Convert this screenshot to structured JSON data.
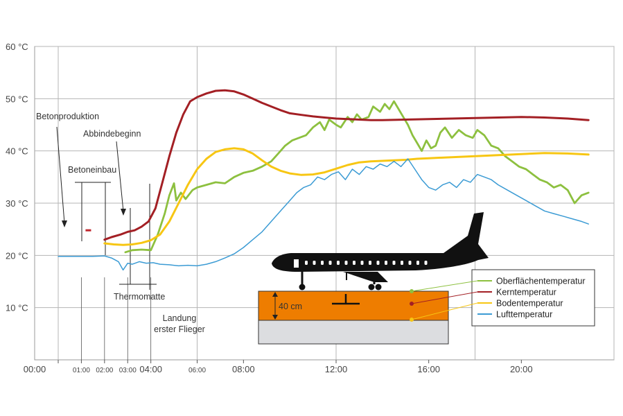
{
  "chart_data": {
    "type": "line",
    "ylim": [
      0,
      60
    ],
    "xlim": [
      0,
      24
    ],
    "grid": true,
    "y_ticks": [
      {
        "v": 10,
        "label": "10 °C"
      },
      {
        "v": 20,
        "label": "20 °C"
      },
      {
        "v": 30,
        "label": "30 °C"
      },
      {
        "v": 40,
        "label": "40 °C"
      },
      {
        "v": 50,
        "label": "50 °C"
      },
      {
        "v": 60,
        "label": "60 °C"
      }
    ],
    "x_ticks": [
      {
        "v": 0,
        "label": "00:00",
        "size": "large"
      },
      {
        "v": 1,
        "label": "01:00",
        "size": "small"
      },
      {
        "v": 2,
        "label": "02:00",
        "size": "small"
      },
      {
        "v": 3,
        "label": "03:00",
        "size": "small"
      },
      {
        "v": 4,
        "label": "04:00",
        "size": "large"
      },
      {
        "v": 6,
        "label": "06:00",
        "size": "small"
      },
      {
        "v": 8,
        "label": "08:00",
        "size": "large"
      },
      {
        "v": 12,
        "label": "12:00",
        "size": "large"
      },
      {
        "v": 16,
        "label": "16:00",
        "size": "large"
      },
      {
        "v": 20,
        "label": "20:00",
        "size": "large"
      }
    ],
    "major_grid_x": [
      0,
      6,
      12,
      18,
      24
    ],
    "series": [
      {
        "name": "Oberflächentemperatur",
        "color": "#8dc03f",
        "x": [
          2.9,
          3.2,
          3.6,
          4.0,
          4.3,
          4.6,
          4.8,
          5.0,
          5.1,
          5.3,
          5.5,
          5.8,
          6.0,
          6.4,
          6.8,
          7.2,
          7.6,
          8.0,
          8.4,
          8.8,
          9.2,
          9.5,
          9.8,
          10.1,
          10.4,
          10.7,
          11.0,
          11.3,
          11.5,
          11.7,
          12.0,
          12.2,
          12.5,
          12.7,
          12.9,
          13.1,
          13.4,
          13.6,
          13.9,
          14.1,
          14.3,
          14.5,
          14.7,
          14.9,
          15.1,
          15.3,
          15.5,
          15.7,
          15.9,
          16.1,
          16.3,
          16.5,
          16.7,
          17.0,
          17.3,
          17.6,
          17.9,
          18.1,
          18.4,
          18.7,
          19.0,
          19.3,
          19.6,
          19.9,
          20.2,
          20.5,
          20.8,
          21.1,
          21.4,
          21.7,
          22.0,
          22.3,
          22.6,
          22.9
        ],
        "y": [
          20.6,
          21.0,
          21.1,
          21.0,
          24.0,
          28.0,
          31.5,
          33.8,
          30.5,
          32.0,
          30.8,
          32.5,
          33.0,
          33.5,
          34.0,
          33.8,
          35.0,
          35.8,
          36.2,
          37.0,
          38.0,
          39.5,
          41.0,
          42.0,
          42.5,
          43.0,
          44.5,
          45.5,
          44.0,
          46.0,
          45.0,
          44.5,
          46.5,
          45.5,
          47.0,
          46.0,
          46.5,
          48.5,
          47.5,
          49.0,
          48.0,
          49.5,
          48.0,
          46.5,
          45.0,
          43.0,
          41.5,
          40.0,
          42.0,
          40.5,
          41.0,
          43.5,
          44.5,
          42.5,
          44.0,
          43.0,
          42.5,
          44.0,
          43.0,
          41.0,
          40.5,
          39.0,
          38.0,
          37.0,
          36.5,
          35.5,
          34.5,
          34.0,
          33.0,
          33.5,
          32.5,
          30.0,
          31.5,
          32.0
        ]
      },
      {
        "name": "Kerntemperatur",
        "color": "#a31f24",
        "x": [
          2.0,
          2.3,
          2.7,
          3.0,
          3.3,
          3.6,
          3.9,
          4.2,
          4.5,
          4.8,
          5.1,
          5.4,
          5.7,
          6.0,
          6.4,
          6.8,
          7.2,
          7.6,
          8.0,
          8.4,
          8.8,
          9.2,
          9.6,
          10.0,
          10.5,
          11.0,
          11.5,
          12.0,
          12.5,
          13.0,
          13.5,
          14.0,
          15.0,
          16.0,
          17.0,
          18.0,
          19.0,
          20.0,
          21.0,
          22.0,
          22.9
        ],
        "y": [
          23.0,
          23.5,
          24.0,
          24.5,
          24.8,
          25.5,
          26.5,
          29.0,
          34.0,
          39.0,
          43.5,
          47.0,
          49.5,
          50.3,
          51.0,
          51.5,
          51.6,
          51.4,
          50.8,
          50.0,
          49.2,
          48.5,
          47.8,
          47.2,
          46.9,
          46.6,
          46.4,
          46.2,
          46.1,
          46.0,
          45.9,
          45.9,
          46.0,
          46.1,
          46.2,
          46.3,
          46.4,
          46.5,
          46.4,
          46.2,
          45.9
        ]
      },
      {
        "name": "Bodentemperatur",
        "color": "#f7c613",
        "x": [
          2.0,
          2.4,
          2.8,
          3.2,
          3.6,
          4.0,
          4.4,
          4.8,
          5.2,
          5.6,
          6.0,
          6.4,
          6.8,
          7.2,
          7.6,
          8.0,
          8.4,
          8.8,
          9.2,
          9.6,
          10.0,
          10.5,
          11.0,
          11.5,
          12.0,
          12.5,
          13.0,
          13.5,
          14.0,
          14.5,
          15.0,
          15.5,
          16.0,
          17.0,
          18.0,
          19.0,
          20.0,
          21.0,
          22.0,
          22.9
        ],
        "y": [
          22.3,
          22.1,
          22.0,
          22.1,
          22.4,
          22.9,
          24.0,
          26.5,
          30.0,
          33.5,
          36.5,
          38.5,
          39.8,
          40.3,
          40.5,
          40.3,
          39.5,
          38.2,
          37.0,
          36.2,
          35.7,
          35.4,
          35.5,
          35.9,
          36.6,
          37.3,
          37.8,
          38.0,
          38.1,
          38.2,
          38.3,
          38.5,
          38.6,
          38.8,
          39.0,
          39.2,
          39.4,
          39.6,
          39.5,
          39.3
        ]
      },
      {
        "name": "Lufttemperatur",
        "color": "#3b9bd4",
        "x": [
          0.0,
          0.5,
          1.0,
          1.5,
          2.0,
          2.3,
          2.6,
          2.8,
          3.0,
          3.2,
          3.5,
          3.8,
          4.1,
          4.4,
          4.8,
          5.2,
          5.6,
          6.0,
          6.4,
          6.8,
          7.2,
          7.6,
          8.0,
          8.4,
          8.8,
          9.2,
          9.6,
          10.0,
          10.3,
          10.6,
          10.9,
          11.2,
          11.5,
          11.8,
          12.1,
          12.4,
          12.7,
          13.0,
          13.3,
          13.6,
          13.9,
          14.2,
          14.5,
          14.8,
          15.1,
          15.4,
          15.7,
          16.0,
          16.3,
          16.6,
          16.9,
          17.2,
          17.5,
          17.8,
          18.1,
          18.4,
          18.7,
          19.0,
          19.4,
          19.8,
          20.2,
          20.6,
          21.0,
          21.4,
          21.8,
          22.2,
          22.6,
          22.9
        ],
        "y": [
          19.8,
          19.8,
          19.8,
          19.8,
          19.9,
          19.5,
          18.8,
          17.2,
          18.5,
          18.3,
          18.8,
          18.5,
          18.6,
          18.3,
          18.2,
          18.0,
          18.1,
          18.0,
          18.3,
          18.8,
          19.5,
          20.3,
          21.5,
          23.0,
          24.5,
          26.5,
          28.5,
          30.5,
          32.0,
          33.0,
          33.5,
          35.0,
          34.5,
          35.5,
          36.0,
          34.5,
          36.5,
          35.5,
          37.0,
          36.5,
          37.5,
          37.0,
          38.0,
          37.0,
          38.5,
          36.5,
          34.5,
          33.0,
          32.5,
          33.5,
          34.0,
          33.0,
          34.5,
          34.0,
          35.5,
          35.0,
          34.5,
          33.5,
          32.5,
          31.5,
          30.5,
          29.5,
          28.5,
          28.0,
          27.5,
          27.0,
          26.5,
          26.0
        ]
      }
    ],
    "markers": [
      {
        "name": "betonproduktion-marker",
        "x": 1.3,
        "y": 24.8,
        "color": "#c0272d"
      }
    ],
    "annotations": {
      "betonproduktion": "Betonproduktion",
      "abbindebeginn": "Abbindebeginn",
      "betoneinbau": "Betoneinbau",
      "thermomatte": "Thermomatte",
      "landung_line1": "Landung",
      "landung_line2": "erster Flieger",
      "slab_depth": "40 cm"
    },
    "legend": {
      "placement": "bottom-right",
      "entries": [
        "Oberflächentemperatur",
        "Kerntemperatur",
        "Bodentemperatur",
        "Lufttemperatur"
      ]
    },
    "colors": {
      "concrete": "#ee7d00",
      "subgrade": "#dcdde0",
      "aircraft": "#111111"
    }
  }
}
